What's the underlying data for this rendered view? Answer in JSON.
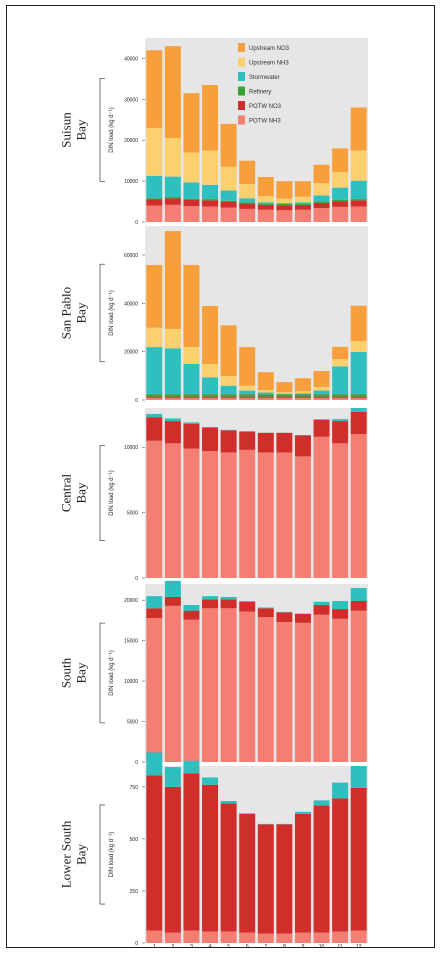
{
  "legend": [
    {
      "label": "Upstream NO3",
      "color": "#f7a03b"
    },
    {
      "label": "Upstream NH3",
      "color": "#fcd06f"
    },
    {
      "label": "Stormwater",
      "color": "#2ebfbe"
    },
    {
      "label": "Refinery",
      "color": "#33a532"
    },
    {
      "label": "POTW NO3",
      "color": "#cf2e2b"
    },
    {
      "label": "POTW NH3",
      "color": "#f47e72"
    }
  ],
  "chart_data": [
    {
      "type": "bar",
      "stacked": true,
      "region": "Suisun Bay",
      "ylabel": "DIN load (kg d⁻¹)",
      "ylim": [
        0,
        45000
      ],
      "yticks": [
        0,
        10000,
        20000,
        30000,
        40000
      ],
      "categories": [
        "1",
        "2",
        "3",
        "4",
        "5",
        "6",
        "7",
        "8",
        "9",
        "10",
        "11",
        "12"
      ],
      "series": [
        {
          "name": "POTW NH3",
          "values": [
            4000,
            4200,
            3900,
            3800,
            3500,
            3200,
            3000,
            2900,
            3000,
            3400,
            3700,
            3800
          ]
        },
        {
          "name": "POTW NO3",
          "values": [
            1500,
            1600,
            1500,
            1500,
            1400,
            1300,
            1200,
            1200,
            1200,
            1300,
            1400,
            1500
          ]
        },
        {
          "name": "Refinery",
          "values": [
            300,
            300,
            300,
            300,
            300,
            300,
            300,
            300,
            300,
            300,
            300,
            300
          ]
        },
        {
          "name": "Stormwater",
          "values": [
            5500,
            5000,
            4000,
            3500,
            2500,
            1000,
            300,
            200,
            300,
            1500,
            3000,
            4500
          ]
        },
        {
          "name": "Upstream NH3",
          "values": [
            11700,
            9400,
            7300,
            8400,
            5800,
            3500,
            1500,
            1100,
            1400,
            3000,
            3800,
            7400
          ]
        },
        {
          "name": "Upstream NO3",
          "values": [
            19000,
            22500,
            14500,
            16000,
            10500,
            5700,
            4700,
            4300,
            3800,
            4500,
            5800,
            10500
          ]
        }
      ]
    },
    {
      "type": "bar",
      "stacked": true,
      "region": "San Pablo Bay",
      "ylabel": "DIN load (kg d⁻¹)",
      "ylim": [
        0,
        72000
      ],
      "yticks": [
        0,
        20000,
        40000,
        60000
      ],
      "categories": [
        "1",
        "2",
        "3",
        "4",
        "5",
        "6",
        "7",
        "8",
        "9",
        "10",
        "11",
        "12"
      ],
      "series": [
        {
          "name": "POTW NH3",
          "values": [
            900,
            900,
            900,
            900,
            900,
            900,
            900,
            900,
            900,
            900,
            900,
            900
          ]
        },
        {
          "name": "POTW NO3",
          "values": [
            500,
            500,
            500,
            500,
            500,
            500,
            500,
            500,
            500,
            500,
            500,
            500
          ]
        },
        {
          "name": "Refinery",
          "values": [
            1000,
            1000,
            1000,
            1000,
            1000,
            1000,
            1000,
            1000,
            1000,
            1000,
            1000,
            1000
          ]
        },
        {
          "name": "Stormwater",
          "values": [
            19500,
            19000,
            12500,
            7000,
            3500,
            1500,
            700,
            200,
            400,
            1500,
            11500,
            17500
          ]
        },
        {
          "name": "Upstream NH3",
          "values": [
            8000,
            8000,
            7000,
            5500,
            4000,
            2000,
            1000,
            600,
            800,
            1500,
            3000,
            4500
          ]
        },
        {
          "name": "Upstream NO3",
          "values": [
            26000,
            40500,
            34000,
            24000,
            21000,
            16000,
            7400,
            4200,
            5400,
            6600,
            5100,
            14600
          ]
        }
      ]
    },
    {
      "type": "bar",
      "stacked": true,
      "region": "Central Bay",
      "ylabel": "DIN load (kg d⁻¹)",
      "ylim": [
        0,
        13000
      ],
      "yticks": [
        0,
        5000,
        10000
      ],
      "categories": [
        "1",
        "2",
        "3",
        "4",
        "5",
        "6",
        "7",
        "8",
        "9",
        "10",
        "11",
        "12"
      ],
      "series": [
        {
          "name": "POTW NH3",
          "values": [
            10500,
            10300,
            9900,
            9700,
            9600,
            9800,
            9600,
            9600,
            9300,
            10800,
            10300,
            11000
          ]
        },
        {
          "name": "POTW NO3",
          "values": [
            1800,
            1700,
            1900,
            1800,
            1700,
            1400,
            1500,
            1500,
            1600,
            1300,
            1700,
            1700
          ]
        },
        {
          "name": "Stormwater",
          "values": [
            250,
            200,
            100,
            50,
            30,
            20,
            10,
            10,
            30,
            50,
            150,
            300
          ]
        }
      ]
    },
    {
      "type": "bar",
      "stacked": true,
      "region": "South Bay",
      "ylabel": "DIN load (kg d⁻¹)",
      "ylim": [
        0,
        22000
      ],
      "yticks": [
        0,
        5000,
        10000,
        15000,
        20000
      ],
      "categories": [
        "1",
        "2",
        "3",
        "4",
        "5",
        "6",
        "7",
        "8",
        "9",
        "10",
        "11",
        "12"
      ],
      "series": [
        {
          "name": "POTW NH3",
          "values": [
            17800,
            19300,
            17600,
            19000,
            19000,
            18600,
            17900,
            17300,
            17200,
            18200,
            17700,
            18700
          ]
        },
        {
          "name": "POTW NO3",
          "values": [
            1200,
            1100,
            1100,
            1100,
            1100,
            1200,
            1100,
            1200,
            1100,
            1200,
            1200,
            1200
          ]
        },
        {
          "name": "Stormwater",
          "values": [
            1500,
            2000,
            700,
            400,
            300,
            100,
            100,
            50,
            50,
            400,
            1000,
            1600
          ]
        }
      ]
    },
    {
      "type": "bar",
      "stacked": true,
      "region": "Lower South Bay",
      "ylabel": "DIN load (kg d⁻¹)",
      "ylim": [
        0,
        850
      ],
      "yticks": [
        0,
        250,
        500,
        750
      ],
      "categories": [
        "1",
        "2",
        "3",
        "4",
        "5",
        "6",
        "7",
        "8",
        "9",
        "10",
        "11",
        "12"
      ],
      "series": [
        {
          "name": "POTW NH3",
          "values": [
            60,
            50,
            60,
            55,
            55,
            50,
            45,
            45,
            50,
            50,
            55,
            60
          ]
        },
        {
          "name": "POTW NO3",
          "values": [
            745,
            700,
            755,
            705,
            615,
            570,
            525,
            525,
            570,
            610,
            640,
            685
          ]
        },
        {
          "name": "Stormwater",
          "values": [
            110,
            95,
            60,
            35,
            12,
            3,
            2,
            2,
            10,
            25,
            75,
            105
          ]
        }
      ]
    }
  ]
}
